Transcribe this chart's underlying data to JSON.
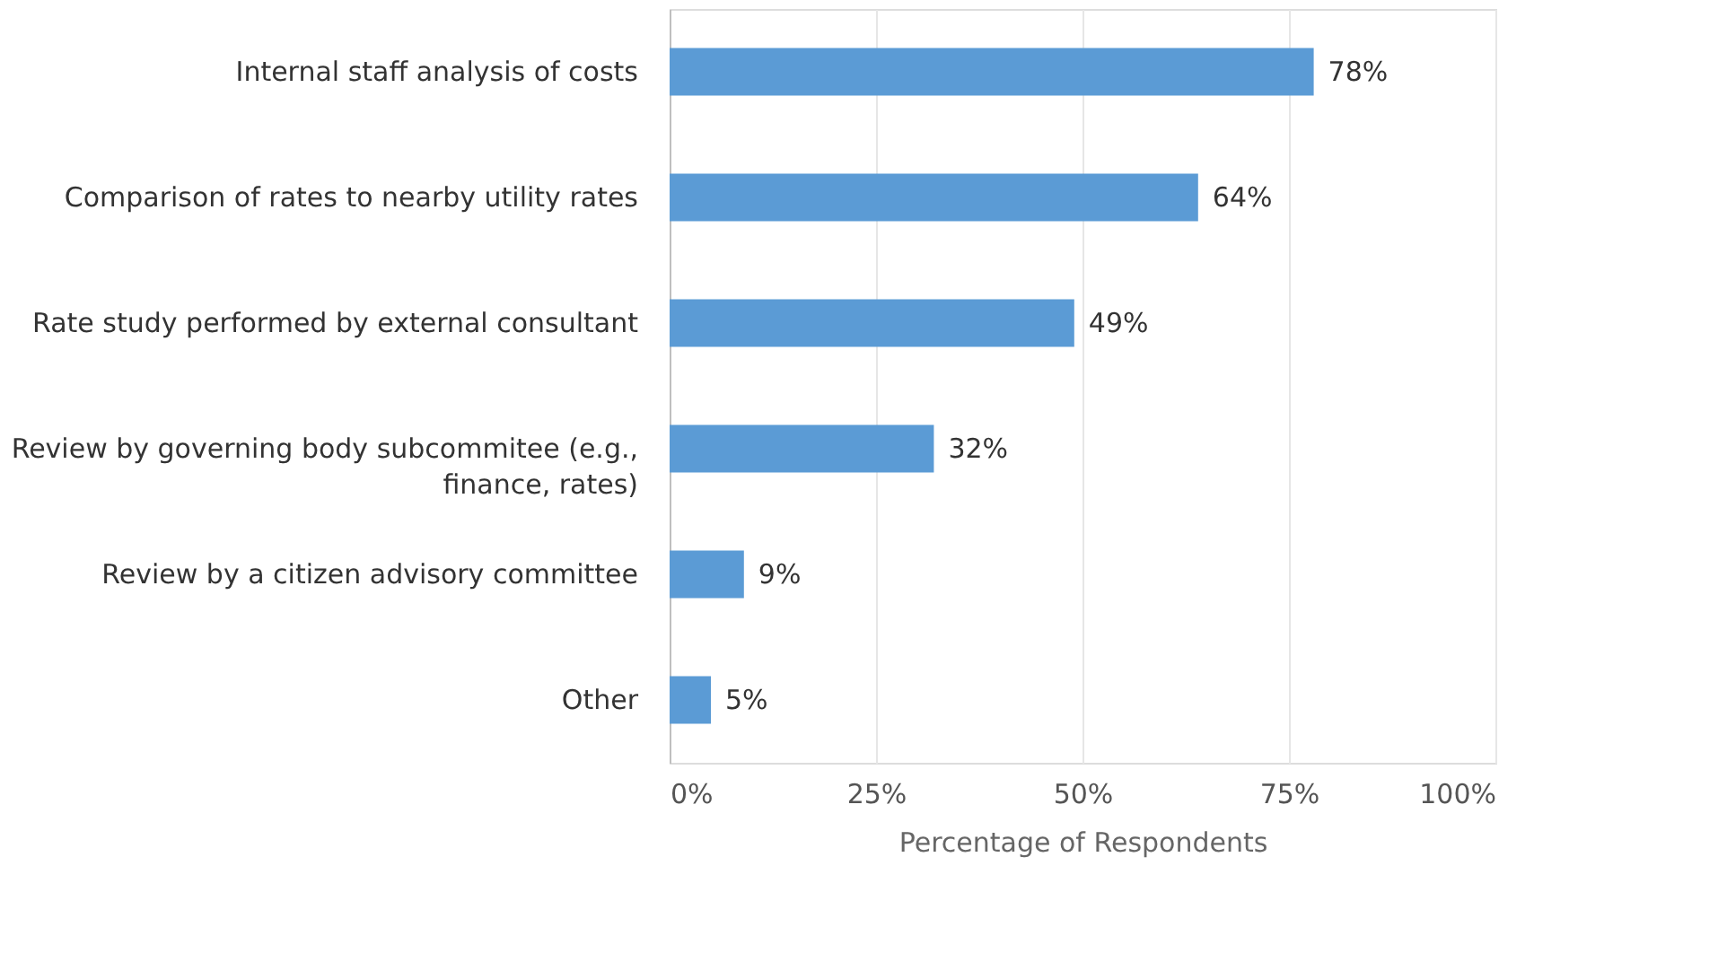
{
  "chart_data": {
    "type": "bar",
    "orientation": "horizontal",
    "categories": [
      "Internal staff analysis of costs",
      "Comparison of rates to nearby utility rates",
      "Rate study performed by external consultant",
      "Review by governing body subcommitee (e.g., finance, rates)",
      "Review by a citizen advisory committee",
      "Other"
    ],
    "values": [
      78,
      64,
      49,
      32,
      9,
      5
    ],
    "value_labels": [
      "78%",
      "64%",
      "49%",
      "32%",
      "9%",
      "5%"
    ],
    "color": "#5b9bd5",
    "xlim": [
      0,
      100
    ],
    "xticks": [
      {
        "value": 0,
        "label": "0%"
      },
      {
        "value": 25,
        "label": "25%"
      },
      {
        "value": 50,
        "label": "50%"
      },
      {
        "value": 75,
        "label": "75%"
      },
      {
        "value": 100,
        "label": "100%"
      }
    ],
    "xlabel": "Percentage of Respondents",
    "grid": "x"
  }
}
